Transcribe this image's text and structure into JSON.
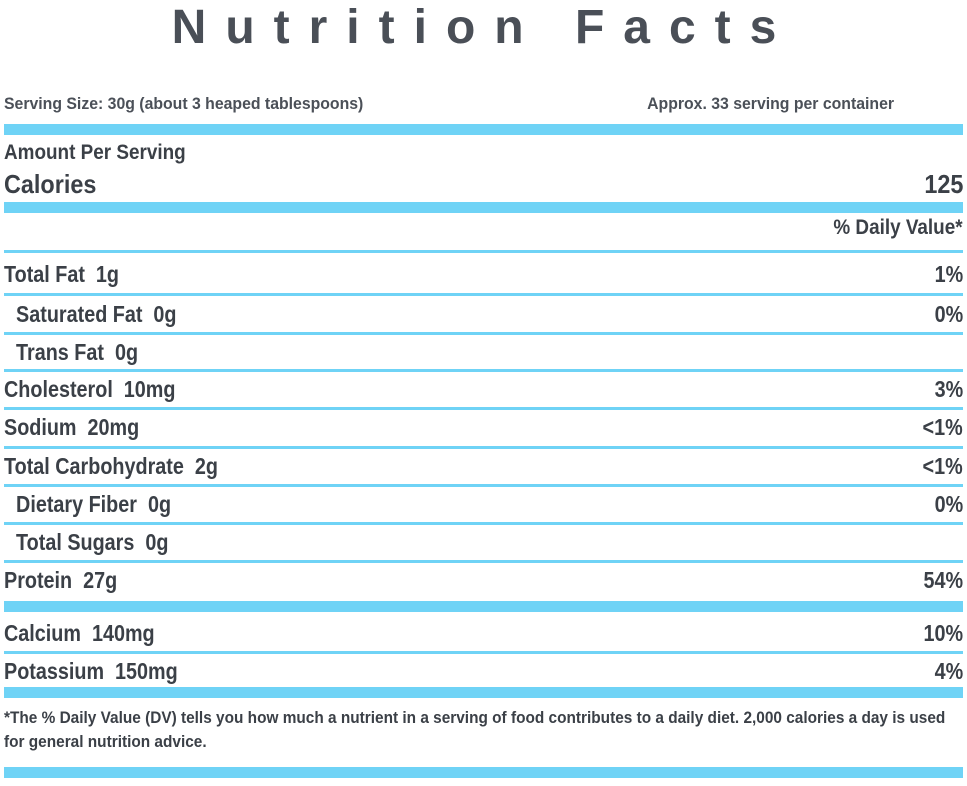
{
  "title": "Nutrition Facts",
  "serving": {
    "size": "Serving Size: 30g (about 3 heaped tablespoons)",
    "per_container": "Approx. 33 serving per container"
  },
  "amount_per_serving": "Amount Per Serving",
  "calories": {
    "label": "Calories",
    "value": "125"
  },
  "daily_value_header": "% Daily Value*",
  "nutrients": [
    {
      "label": "Total Fat  1g",
      "dv": "1%"
    },
    {
      "label": "Saturated Fat  0g",
      "dv": "0%"
    },
    {
      "label": "Trans Fat  0g",
      "dv": ""
    },
    {
      "label": "Cholesterol  10mg",
      "dv": "3%"
    },
    {
      "label": "Sodium  20mg",
      "dv": "<1%"
    },
    {
      "label": "Total Carbohydrate  2g",
      "dv": "<1%"
    },
    {
      "label": "Dietary Fiber  0g",
      "dv": "0%"
    },
    {
      "label": "Total Sugars  0g",
      "dv": ""
    },
    {
      "label": "Protein  27g",
      "dv": "54%"
    },
    {
      "label": "Calcium  140mg",
      "dv": "10%"
    },
    {
      "label": "Potassium  150mg",
      "dv": "4%"
    }
  ],
  "footnote": "*The % Daily Value (DV) tells you how much a nutrient in a serving of food contributes to a daily diet. 2,000 calories a day is used for general nutrition advice.",
  "colors": {
    "accent": "#6fd3f6",
    "text": "#3b4047"
  }
}
